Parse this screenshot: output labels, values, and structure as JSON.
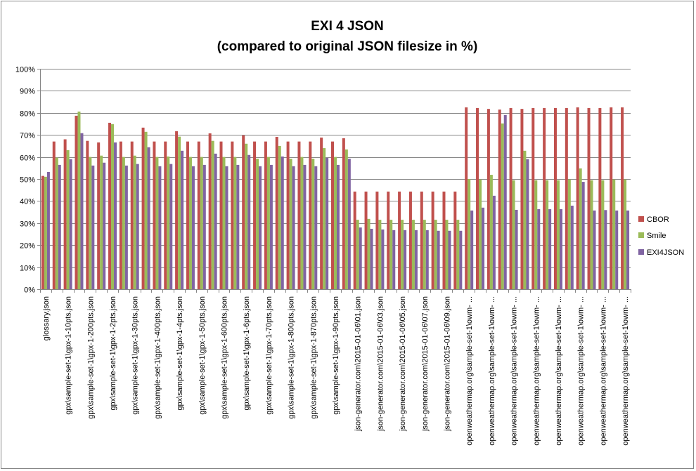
{
  "chart_data": {
    "type": "bar",
    "title": "EXI 4 JSON",
    "subtitle": "(compared to original JSON filesize in %)",
    "xlabel": "",
    "ylabel": "",
    "ylim": [
      0,
      100
    ],
    "y_ticks": [
      "0%",
      "10%",
      "20%",
      "30%",
      "40%",
      "50%",
      "60%",
      "70%",
      "80%",
      "90%",
      "100%"
    ],
    "grid": true,
    "legend_position": "right",
    "categories": [
      "glossary.json",
      "",
      "gpx\\sample-set-1\\gpx-1-10pts.json",
      "",
      "gpx\\sample-set-1\\gpx-1-200pts.json",
      "",
      "gpx\\sample-set-1\\gpx-1-2pts.json",
      "",
      "gpx\\sample-set-1\\gpx-1-30pts.json",
      "",
      "gpx\\sample-set-1\\gpx-1-400pts.json",
      "",
      "gpx\\sample-set-1\\gpx-1-4pts.json",
      "",
      "gpx\\sample-set-1\\gpx-1-50pts.json",
      "",
      "gpx\\sample-set-1\\gpx-1-600pts.json",
      "",
      "gpx\\sample-set-1\\gpx-1-6pts.json",
      "",
      "gpx\\sample-set-1\\gpx-1-70pts.json",
      "",
      "gpx\\sample-set-1\\gpx-1-800pts.json",
      "",
      "gpx\\sample-set-1\\gpx-1-870pts.json",
      "",
      "gpx\\sample-set-1\\gpx-1-90pts.json",
      "",
      "json-generator.com\\2015-01-06\\01.json",
      "",
      "json-generator.com\\2015-01-06\\03.json",
      "",
      "json-generator.com\\2015-01-06\\05.json",
      "",
      "json-generator.com\\2015-01-06\\07.json",
      "",
      "json-generator.com\\2015-01-06\\09.json",
      "",
      "openweathermap.org\\sample-set-1\\owm- ...",
      "",
      "openweathermap.org\\sample-set-1\\owm- ...",
      "",
      "openweathermap.org\\sample-set-1\\owm- ...",
      "",
      "openweathermap.org\\sample-set-1\\owm- ...",
      "",
      "openweathermap.org\\sample-set-1\\owm- ...",
      "",
      "openweathermap.org\\sample-set-1\\owm- ...",
      "",
      "openweathermap.org\\sample-set-1\\owm- ...",
      "",
      "openweathermap.org\\sample-set-1\\owm- ..."
    ],
    "series": [
      {
        "name": "CBOR",
        "color": "#c0504d",
        "values": [
          51.4,
          67.0,
          68.0,
          78.7,
          67.3,
          66.6,
          75.5,
          67.0,
          67.0,
          73.3,
          67.0,
          67.0,
          71.7,
          67.0,
          67.0,
          70.7,
          67.0,
          67.0,
          69.8,
          67.0,
          67.0,
          69.1,
          67.0,
          67.0,
          67.0,
          68.8,
          67.0,
          68.5,
          44.3,
          44.3,
          44.3,
          44.3,
          44.3,
          44.3,
          44.3,
          44.3,
          44.3,
          44.3,
          82.5,
          82.2,
          81.8,
          81.5,
          82.2,
          81.8,
          82.2,
          82.2,
          82.2,
          82.2,
          82.5,
          82.2,
          82.2,
          82.5,
          82.5
        ]
      },
      {
        "name": "Smile",
        "color": "#9bbb59",
        "values": [
          51.0,
          59.7,
          63.1,
          80.6,
          60.0,
          60.6,
          74.9,
          60.0,
          60.6,
          71.4,
          60.0,
          60.2,
          69.2,
          60.0,
          60.0,
          67.3,
          60.0,
          60.0,
          66.0,
          59.2,
          60.0,
          65.0,
          59.2,
          60.0,
          59.2,
          64.0,
          60.0,
          63.4,
          31.5,
          31.9,
          31.5,
          31.5,
          31.5,
          31.5,
          31.5,
          31.5,
          31.5,
          31.5,
          50.0,
          49.8,
          51.9,
          75.2,
          49.4,
          62.8,
          49.4,
          49.4,
          49.4,
          49.8,
          54.8,
          49.4,
          49.4,
          49.8,
          49.8
        ]
      },
      {
        "name": "EXI4JSON",
        "color": "#8064a2",
        "values": [
          53.2,
          56.4,
          59.0,
          70.8,
          56.1,
          57.4,
          66.6,
          56.1,
          56.8,
          64.4,
          55.8,
          56.8,
          62.8,
          55.8,
          56.4,
          61.5,
          55.8,
          56.4,
          60.9,
          55.8,
          56.4,
          60.2,
          55.8,
          56.4,
          55.8,
          59.6,
          56.4,
          59.2,
          28.0,
          27.4,
          27.1,
          26.8,
          26.8,
          26.8,
          26.8,
          26.5,
          26.5,
          26.5,
          35.7,
          37.0,
          42.4,
          79.0,
          36.0,
          59.0,
          36.3,
          36.3,
          36.3,
          37.9,
          48.7,
          35.7,
          35.9,
          35.7,
          35.7
        ]
      }
    ]
  },
  "legend": {
    "items": [
      {
        "label": "CBOR",
        "color": "#c0504d"
      },
      {
        "label": "Smile",
        "color": "#9bbb59"
      },
      {
        "label": "EXI4JSON",
        "color": "#8064a2"
      }
    ]
  },
  "colors": {
    "gridline": "#868686",
    "axis": "#868686",
    "border": "#868686"
  }
}
